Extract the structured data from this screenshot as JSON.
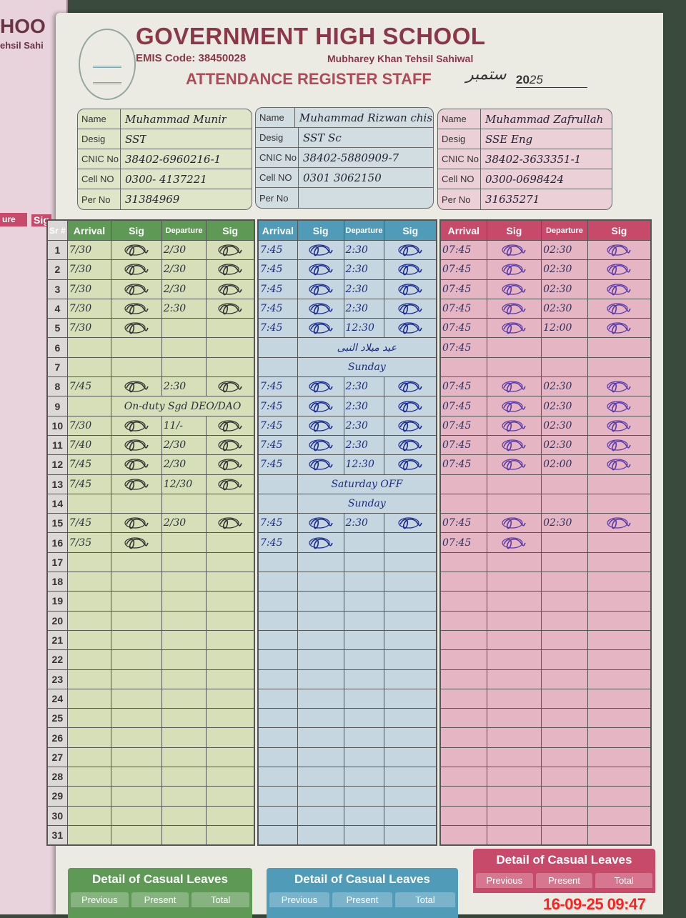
{
  "left_page": {
    "text1": "HOO",
    "text2": "ehsil Sahi",
    "col1": "ure",
    "col2": "Sig"
  },
  "header": {
    "title": "GOVERNMENT HIGH SCHOOL",
    "emis": "EMIS Code: 38450028",
    "address": "Mubharey Khan Tehsil Sahiwal",
    "register": "ATTENDANCE  REGISTER STAFF",
    "month": "ستمبر",
    "year_prefix": "20",
    "year_suffix": "25"
  },
  "labels": {
    "name": "Name",
    "desig": "Desig",
    "cnic": "CNIC No",
    "cell": "Cell NO",
    "per": "Per No",
    "sr": "Sr #",
    "arrival": "Arrival",
    "sig": "Sig",
    "departure": "Departure"
  },
  "colors": {
    "green": "#5e9a56",
    "blue": "#4f9bb8",
    "pink": "#c84a6a",
    "green_bg": "#d6dfb8",
    "blue_bg": "#c5d6e0",
    "pink_bg": "#e6b5c3"
  },
  "staff": [
    {
      "name": "Muhammad  Munir",
      "desig": "SST",
      "cnic": "38402-6960216-1",
      "cell": "0300- 4137221",
      "per": "31384969",
      "rows": [
        [
          "7/30",
          1,
          "2/30",
          1
        ],
        [
          "7/30",
          1,
          "2/30",
          1
        ],
        [
          "7/30",
          1,
          "2/30",
          1
        ],
        [
          "7/30",
          1,
          "2:30",
          1
        ],
        [
          "7/30",
          1,
          "",
          0
        ],
        [
          "",
          0,
          "",
          0
        ],
        [
          "",
          0,
          "",
          0
        ],
        [
          "7/45",
          1,
          "2:30",
          1
        ],
        {
          "note": "On-duty  Sgd DEO/DAO"
        },
        [
          "7/30",
          1,
          "11/-",
          1
        ],
        [
          "7/40",
          1,
          "2/30",
          1
        ],
        [
          "7/45",
          1,
          "2/30",
          1
        ],
        [
          "7/45",
          1,
          "12/30",
          1
        ],
        [
          "",
          0,
          "",
          0
        ],
        [
          "7/45",
          1,
          "2/30",
          1
        ],
        [
          "7/35",
          1,
          "",
          0
        ]
      ]
    },
    {
      "name": "Muhammad Rizwan chishti",
      "desig": "SST Sc",
      "cnic": "38402-5880909-7",
      "cell": "0301 3062150",
      "per": "",
      "rows": [
        [
          "7:45",
          1,
          "2:30",
          1
        ],
        [
          "7:45",
          1,
          "2:30",
          1
        ],
        [
          "7:45",
          1,
          "2:30",
          1
        ],
        [
          "7:45",
          1,
          "2:30",
          1
        ],
        [
          "7:45",
          1,
          "12:30",
          1
        ],
        {
          "note": "عید میلاد النبی"
        },
        {
          "note": "Sunday"
        },
        [
          "7:45",
          1,
          "2:30",
          1
        ],
        [
          "7:45",
          1,
          "2:30",
          1
        ],
        [
          "7:45",
          1,
          "2:30",
          1
        ],
        [
          "7:45",
          1,
          "2:30",
          1
        ],
        [
          "7:45",
          1,
          "12:30",
          1
        ],
        {
          "note": "Saturday OFF"
        },
        {
          "note": "Sunday"
        },
        [
          "7:45",
          1,
          "2:30",
          1
        ],
        [
          "7:45",
          1,
          "",
          0
        ]
      ]
    },
    {
      "name": "Muhammad Zafrullah",
      "desig": "SSE Eng",
      "cnic": "38402-3633351-1",
      "cell": "0300-0698424",
      "per": "31635271",
      "rows": [
        [
          "07:45",
          1,
          "02:30",
          1
        ],
        [
          "07:45",
          1,
          "02:30",
          1
        ],
        [
          "07:45",
          1,
          "02:30",
          1
        ],
        [
          "07:45",
          1,
          "02:30",
          1
        ],
        [
          "07:45",
          1,
          "12:00",
          1
        ],
        [
          "07:45",
          0,
          "",
          0
        ],
        [
          "",
          0,
          "",
          0
        ],
        [
          "07:45",
          1,
          "02:30",
          1
        ],
        [
          "07:45",
          1,
          "02:30",
          1
        ],
        [
          "07:45",
          1,
          "02:30",
          1
        ],
        [
          "07:45",
          1,
          "02:30",
          1
        ],
        [
          "07:45",
          1,
          "02:00",
          1
        ],
        [
          "",
          0,
          "",
          0
        ],
        [
          "",
          0,
          "",
          0
        ],
        [
          "07:45",
          1,
          "02:30",
          1
        ],
        [
          "07:45",
          1,
          "",
          0
        ]
      ]
    }
  ],
  "leaves": {
    "title": "Detail of Casual Leaves",
    "previous": "Previous",
    "present": "Present",
    "total": "Total"
  },
  "timestamp": "16-09-25  09:47"
}
